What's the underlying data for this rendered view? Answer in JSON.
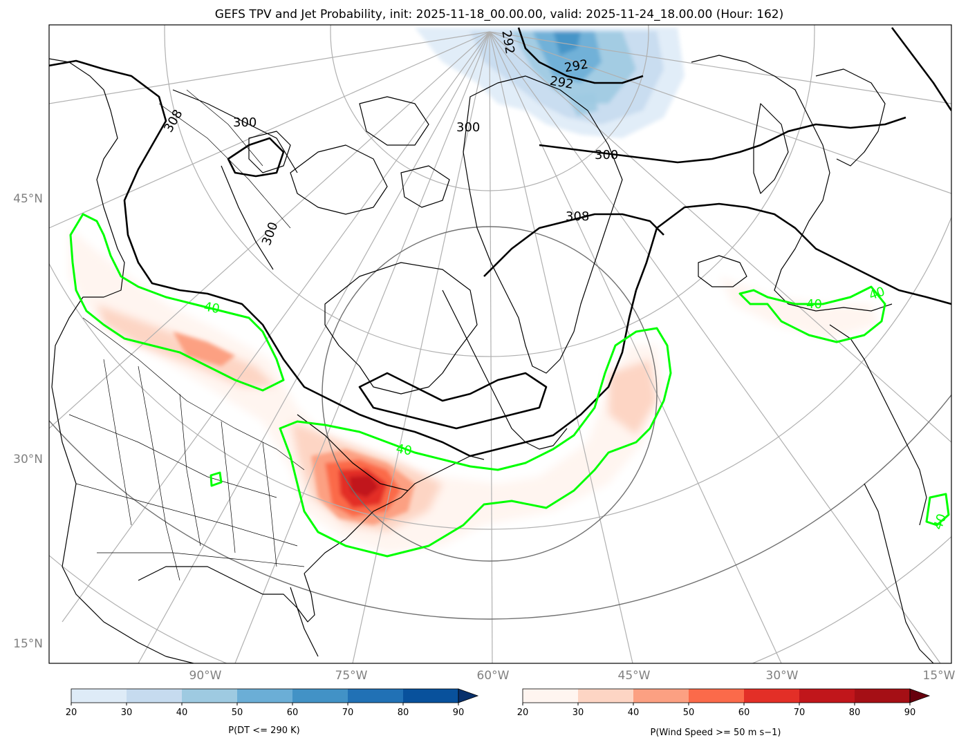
{
  "title": "GEFS TPV and Jet Probability, init: 2025-11-18_00.00.00, valid: 2025-11-24_18.00.00 (Hour: 162)",
  "map": {
    "projection": "north-polar-stereographic",
    "latitude_labels": [
      "45°N",
      "30°N",
      "15°N"
    ],
    "longitude_labels": [
      "90°W",
      "75°W",
      "60°W",
      "45°W",
      "30°W",
      "15°W"
    ],
    "grid": true,
    "theta_contour_labels": [
      "292",
      "292",
      "292",
      "300",
      "300",
      "300",
      "300",
      "308",
      "308"
    ],
    "jet_contour_labels": [
      "40",
      "40",
      "40",
      "40",
      "40"
    ],
    "colors": {
      "coastline": "#000000",
      "theta_contour": "#000000",
      "jet_probability_contour": "#00ff00",
      "gridline": "#b0b0b0",
      "range_ring": "#707070"
    }
  },
  "colorbars": [
    {
      "label": "P(DT <= 290 K)",
      "ticks": [
        "20",
        "30",
        "40",
        "50",
        "60",
        "70",
        "80",
        "90"
      ],
      "colors": [
        "#deebf7",
        "#c6dbef",
        "#9ecae1",
        "#6baed6",
        "#4292c6",
        "#2171b5",
        "#08519c",
        "#08306b"
      ],
      "extend": "max"
    },
    {
      "label": "P(Wind Speed >= 50 m s−1)",
      "ticks": [
        "20",
        "30",
        "40",
        "50",
        "60",
        "70",
        "80",
        "90"
      ],
      "colors": [
        "#fff5f0",
        "#fdd5c4",
        "#fca082",
        "#fb6a4a",
        "#e32f27",
        "#c1161b",
        "#a50f15",
        "#67000d"
      ],
      "extend": "max"
    }
  ]
}
